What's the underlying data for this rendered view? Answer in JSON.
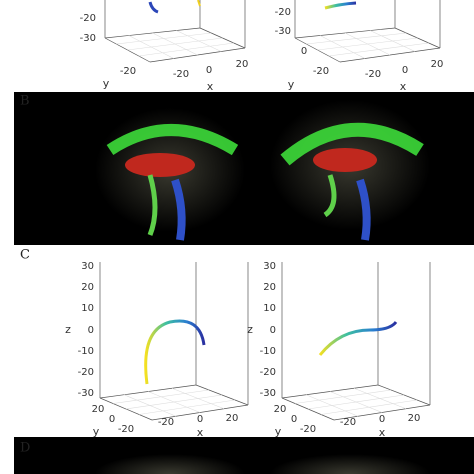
{
  "top_plots": [
    {
      "z_ticks": [
        "-20",
        "-30"
      ],
      "y_ticks": [
        "-20"
      ],
      "y_label": "y",
      "x_ticks": [
        "-20",
        "0",
        "20"
      ],
      "x_label": "x"
    },
    {
      "z_ticks": [
        "-20",
        "-30"
      ],
      "y_ticks": [
        "0",
        "-20"
      ],
      "y_label": "y",
      "x_ticks": [
        "-20",
        "0",
        "20"
      ],
      "x_label": "x"
    }
  ],
  "panel_b": {
    "label": "B"
  },
  "panel_c": {
    "label": "C",
    "plots": [
      {
        "z_ticks": [
          "30",
          "20",
          "10",
          "0",
          "-10",
          "-20",
          "-30"
        ],
        "z_label": "z",
        "y_ticks": [
          "20",
          "0",
          "-20"
        ],
        "y_label": "y",
        "x_ticks": [
          "-20",
          "0",
          "20"
        ],
        "x_label": "x"
      },
      {
        "z_ticks": [
          "30",
          "20",
          "10",
          "0",
          "-10",
          "-20",
          "-30"
        ],
        "z_label": "z",
        "y_ticks": [
          "20",
          "0",
          "-20"
        ],
        "y_label": "y",
        "x_ticks": [
          "-20",
          "0",
          "20"
        ],
        "x_label": "x"
      }
    ]
  },
  "panel_d": {
    "label": "D"
  }
}
